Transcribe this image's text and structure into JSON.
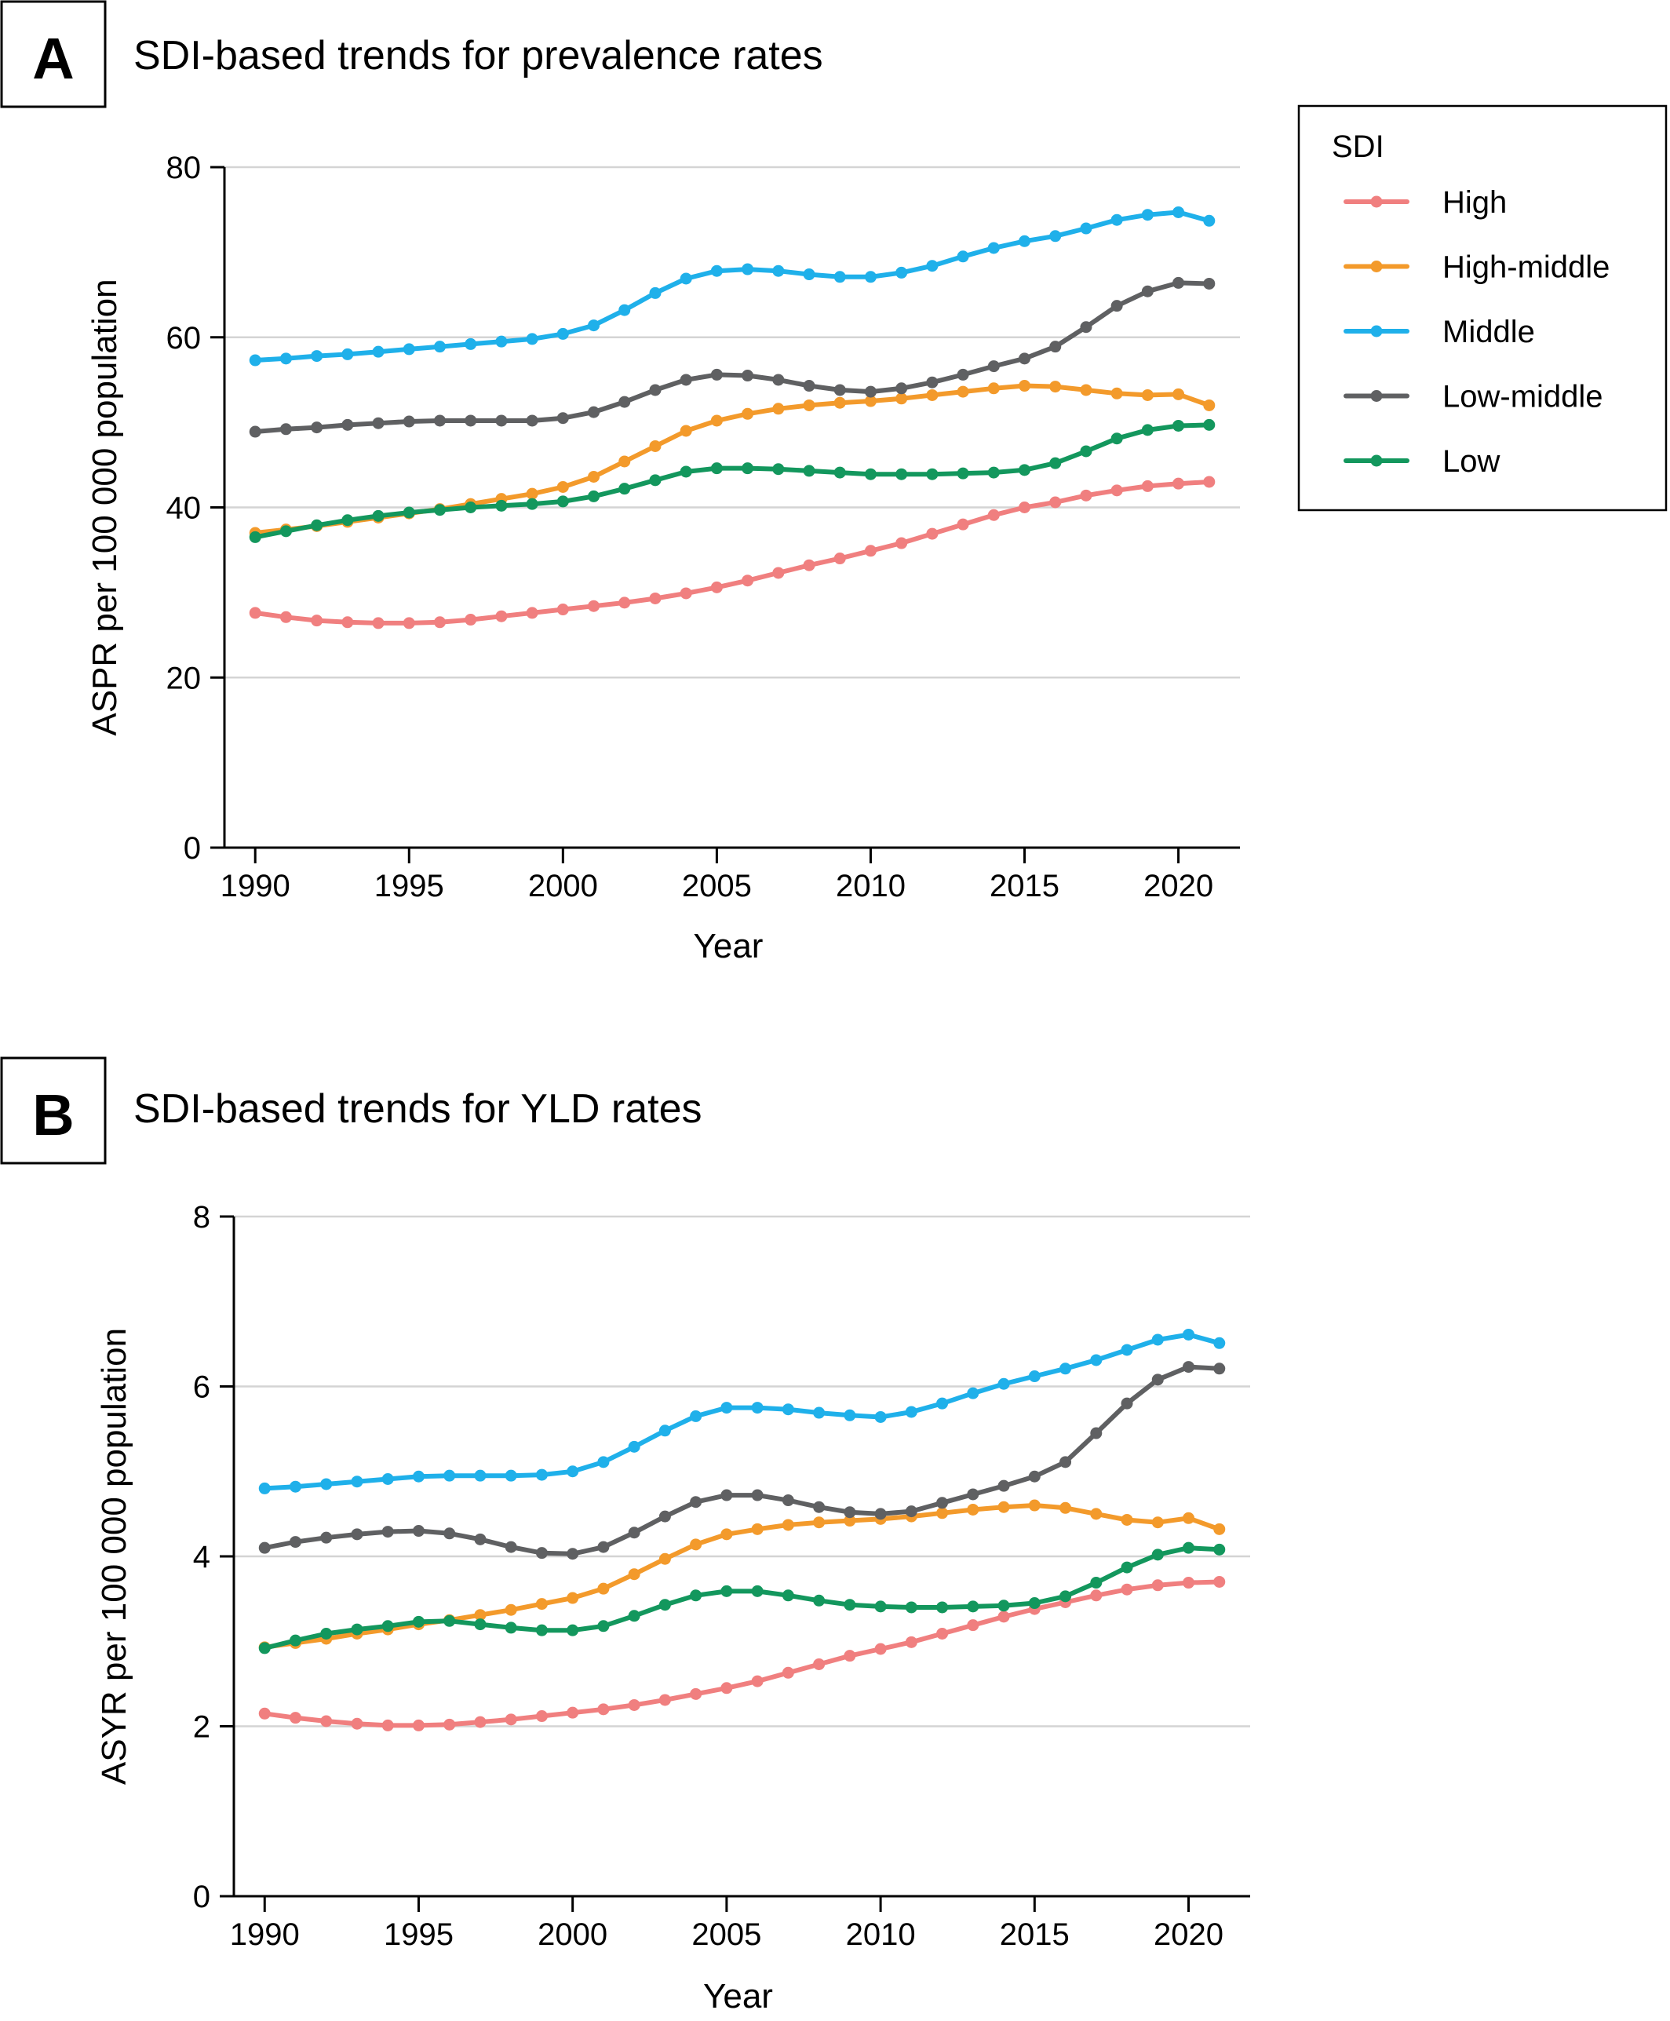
{
  "legend": {
    "title": "SDI",
    "entries": [
      "High",
      "High-middle",
      "Middle",
      "Low-middle",
      "Low"
    ]
  },
  "colors": {
    "High": "#f07f7f",
    "High-middle": "#f39a2b",
    "Middle": "#1fb0ea",
    "Low-middle": "#5f6062",
    "Low": "#13975d"
  },
  "chart_data": [
    {
      "panel_label": "A",
      "type": "line",
      "title": "SDI-based trends for prevalence rates",
      "xlabel": "Year",
      "ylabel": "ASPR per 100 000 population",
      "xlim": [
        1989,
        2022
      ],
      "ylim": [
        0,
        80
      ],
      "xticks": [
        1990,
        1995,
        2000,
        2005,
        2010,
        2015,
        2020
      ],
      "yticks": [
        0,
        20,
        40,
        60,
        80
      ],
      "grid": "horizontal",
      "legend_position": "right",
      "x": [
        1990,
        1991,
        1992,
        1993,
        1994,
        1995,
        1996,
        1997,
        1998,
        1999,
        2000,
        2001,
        2002,
        2003,
        2004,
        2005,
        2006,
        2007,
        2008,
        2009,
        2010,
        2011,
        2012,
        2013,
        2014,
        2015,
        2016,
        2017,
        2018,
        2019,
        2020,
        2021
      ],
      "series": [
        {
          "name": "High",
          "values": [
            27.6,
            27.1,
            26.7,
            26.5,
            26.4,
            26.4,
            26.5,
            26.8,
            27.2,
            27.6,
            28.0,
            28.4,
            28.8,
            29.3,
            29.9,
            30.6,
            31.4,
            32.3,
            33.2,
            34.0,
            34.9,
            35.8,
            36.9,
            38.0,
            39.1,
            40.0,
            40.6,
            41.4,
            42.0,
            42.5,
            42.8,
            43.0
          ]
        },
        {
          "name": "High-middle",
          "values": [
            37.0,
            37.4,
            37.8,
            38.3,
            38.8,
            39.3,
            39.8,
            40.4,
            41.0,
            41.6,
            42.4,
            43.6,
            45.4,
            47.2,
            49.0,
            50.2,
            51.0,
            51.6,
            52.0,
            52.3,
            52.5,
            52.8,
            53.2,
            53.6,
            54.0,
            54.3,
            54.2,
            53.8,
            53.4,
            53.2,
            53.3,
            52.0
          ]
        },
        {
          "name": "Middle",
          "values": [
            57.3,
            57.5,
            57.8,
            58.0,
            58.3,
            58.6,
            58.9,
            59.2,
            59.5,
            59.8,
            60.4,
            61.4,
            63.2,
            65.2,
            66.9,
            67.8,
            68.0,
            67.8,
            67.4,
            67.1,
            67.1,
            67.6,
            68.4,
            69.5,
            70.5,
            71.3,
            71.9,
            72.8,
            73.8,
            74.4,
            74.7,
            73.7
          ]
        },
        {
          "name": "Low-middle",
          "values": [
            48.9,
            49.2,
            49.4,
            49.7,
            49.9,
            50.1,
            50.2,
            50.2,
            50.2,
            50.2,
            50.5,
            51.2,
            52.4,
            53.8,
            55.0,
            55.6,
            55.5,
            55.0,
            54.3,
            53.8,
            53.6,
            54.0,
            54.7,
            55.6,
            56.6,
            57.5,
            58.9,
            61.2,
            63.7,
            65.4,
            66.4,
            66.3
          ]
        },
        {
          "name": "Low",
          "values": [
            36.5,
            37.2,
            37.9,
            38.5,
            39.0,
            39.4,
            39.7,
            40.0,
            40.2,
            40.4,
            40.7,
            41.3,
            42.2,
            43.2,
            44.2,
            44.6,
            44.6,
            44.5,
            44.3,
            44.1,
            43.9,
            43.9,
            43.9,
            44.0,
            44.1,
            44.4,
            45.2,
            46.6,
            48.1,
            49.1,
            49.6,
            49.7
          ]
        }
      ]
    },
    {
      "panel_label": "B",
      "type": "line",
      "title": "SDI-based trends for YLD rates",
      "xlabel": "Year",
      "ylabel": "ASYR per 100 000 population",
      "xlim": [
        1989,
        2022
      ],
      "ylim": [
        0,
        8
      ],
      "xticks": [
        1990,
        1995,
        2000,
        2005,
        2010,
        2015,
        2020
      ],
      "yticks": [
        0,
        2,
        4,
        6,
        8
      ],
      "grid": "horizontal",
      "x": [
        1990,
        1991,
        1992,
        1993,
        1994,
        1995,
        1996,
        1997,
        1998,
        1999,
        2000,
        2001,
        2002,
        2003,
        2004,
        2005,
        2006,
        2007,
        2008,
        2009,
        2010,
        2011,
        2012,
        2013,
        2014,
        2015,
        2016,
        2017,
        2018,
        2019,
        2020,
        2021
      ],
      "series": [
        {
          "name": "High",
          "values": [
            2.15,
            2.1,
            2.06,
            2.03,
            2.01,
            2.01,
            2.02,
            2.05,
            2.08,
            2.12,
            2.16,
            2.2,
            2.25,
            2.31,
            2.38,
            2.45,
            2.53,
            2.63,
            2.73,
            2.83,
            2.91,
            2.99,
            3.09,
            3.19,
            3.29,
            3.38,
            3.46,
            3.54,
            3.61,
            3.66,
            3.69,
            3.7
          ]
        },
        {
          "name": "High-middle",
          "values": [
            2.93,
            2.98,
            3.03,
            3.09,
            3.14,
            3.2,
            3.25,
            3.31,
            3.37,
            3.44,
            3.51,
            3.62,
            3.79,
            3.97,
            4.14,
            4.26,
            4.32,
            4.37,
            4.4,
            4.42,
            4.44,
            4.47,
            4.51,
            4.55,
            4.58,
            4.6,
            4.57,
            4.5,
            4.43,
            4.4,
            4.45,
            4.32
          ]
        },
        {
          "name": "Middle",
          "values": [
            4.8,
            4.82,
            4.85,
            4.88,
            4.91,
            4.94,
            4.95,
            4.95,
            4.95,
            4.96,
            5.0,
            5.11,
            5.29,
            5.48,
            5.65,
            5.75,
            5.75,
            5.73,
            5.69,
            5.66,
            5.64,
            5.7,
            5.8,
            5.92,
            6.03,
            6.12,
            6.21,
            6.31,
            6.43,
            6.55,
            6.61,
            6.51
          ]
        },
        {
          "name": "Low-middle",
          "values": [
            4.1,
            4.17,
            4.22,
            4.26,
            4.29,
            4.3,
            4.27,
            4.2,
            4.11,
            4.04,
            4.03,
            4.11,
            4.28,
            4.47,
            4.64,
            4.72,
            4.72,
            4.66,
            4.58,
            4.52,
            4.5,
            4.53,
            4.63,
            4.73,
            4.83,
            4.94,
            5.11,
            5.45,
            5.8,
            6.08,
            6.23,
            6.21
          ]
        },
        {
          "name": "Low",
          "values": [
            2.92,
            3.01,
            3.09,
            3.14,
            3.18,
            3.23,
            3.24,
            3.2,
            3.16,
            3.13,
            3.13,
            3.18,
            3.3,
            3.43,
            3.54,
            3.59,
            3.59,
            3.54,
            3.48,
            3.43,
            3.41,
            3.4,
            3.4,
            3.41,
            3.42,
            3.45,
            3.53,
            3.69,
            3.87,
            4.02,
            4.1,
            4.08
          ]
        }
      ]
    }
  ]
}
